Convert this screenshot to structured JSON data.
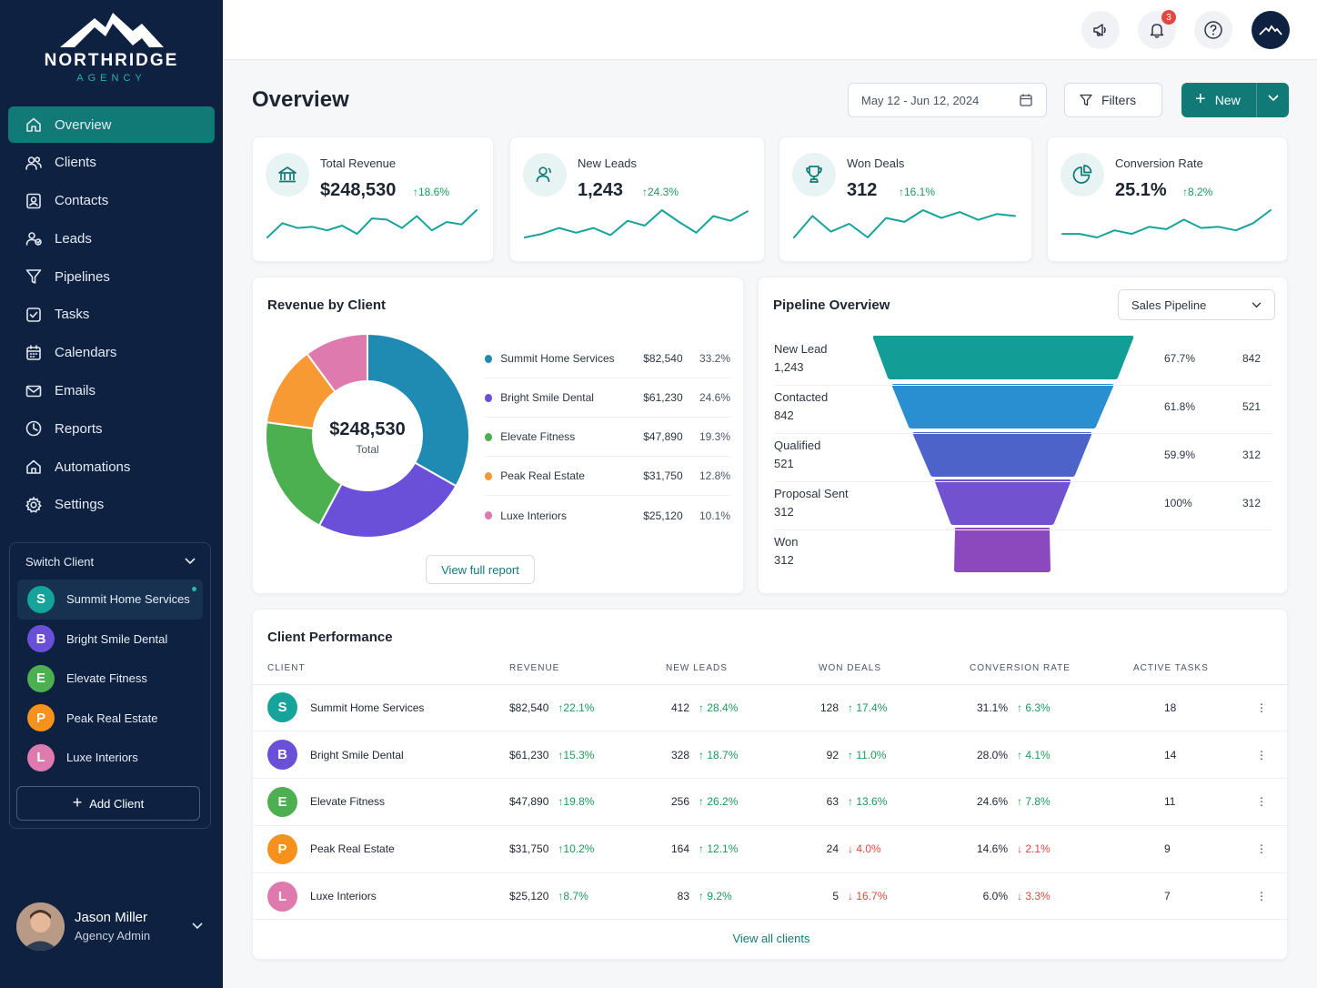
{
  "brand": {
    "name": "NORTHRIDGE",
    "sub": "AGENCY"
  },
  "nav": [
    {
      "label": "Overview",
      "icon": "home-icon"
    },
    {
      "label": "Clients",
      "icon": "users-icon"
    },
    {
      "label": "Contacts",
      "icon": "contact-card-icon"
    },
    {
      "label": "Leads",
      "icon": "leads-icon"
    },
    {
      "label": "Pipelines",
      "icon": "funnel-icon"
    },
    {
      "label": "Tasks",
      "icon": "checkbox-icon"
    },
    {
      "label": "Calendars",
      "icon": "calendar-icon"
    },
    {
      "label": "Emails",
      "icon": "mail-icon"
    },
    {
      "label": "Reports",
      "icon": "clock-pie-icon"
    },
    {
      "label": "Automations",
      "icon": "automation-icon"
    },
    {
      "label": "Settings",
      "icon": "gear-icon"
    }
  ],
  "switch_client": {
    "title": "Switch Client",
    "clients": [
      {
        "initial": "S",
        "name": "Summit Home Services",
        "color": "#15a39b"
      },
      {
        "initial": "B",
        "name": "Bright Smile Dental",
        "color": "#6a4fd8"
      },
      {
        "initial": "E",
        "name": "Elevate Fitness",
        "color": "#4caf50"
      },
      {
        "initial": "P",
        "name": "Peak Real Estate",
        "color": "#f5921e"
      },
      {
        "initial": "L",
        "name": "Luxe Interiors",
        "color": "#df7aae"
      }
    ],
    "add_label": "Add Client"
  },
  "user": {
    "name": "Jason Miller",
    "role": "Agency Admin"
  },
  "topbar": {
    "notification_count": "3"
  },
  "page": {
    "title": "Overview",
    "date_range": "May 12 - Jun 12, 2024",
    "filters_label": "Filters",
    "new_label": "New"
  },
  "kpis": [
    {
      "label": "Total Revenue",
      "value": "$248,530",
      "delta": "18.6%",
      "icon": "bank-icon",
      "spark": [
        30,
        18,
        22,
        21,
        24,
        20,
        27,
        14,
        15,
        22,
        12,
        24,
        17,
        19,
        7
      ]
    },
    {
      "label": "New Leads",
      "value": "1,243",
      "delta": "24.3%",
      "icon": "user-icon",
      "spark": [
        28,
        25,
        20,
        24,
        20,
        26,
        14,
        18,
        5,
        15,
        24,
        10,
        14,
        6
      ]
    },
    {
      "label": "Won Deals",
      "value": "312",
      "delta": "16.1%",
      "icon": "trophy-icon",
      "spark": [
        30,
        8,
        24,
        16,
        30,
        10,
        14,
        2,
        10,
        4,
        12,
        6,
        8
      ]
    },
    {
      "label": "Conversion Rate",
      "value": "25.1%",
      "delta": "8.2%",
      "icon": "pie-icon",
      "spark": [
        20,
        20,
        23,
        17,
        20,
        14,
        16,
        8,
        15,
        14,
        17,
        11,
        0
      ]
    }
  ],
  "revenue_by_client": {
    "title": "Revenue by Client",
    "total_value": "$248,530",
    "total_label": "Total",
    "view_label": "View full report"
  },
  "chart_data": {
    "type": "pie",
    "categories": [
      "Summit Home Services",
      "Bright Smile Dental",
      "Elevate Fitness",
      "Peak Real Estate",
      "Luxe Interiors"
    ],
    "values": [
      82540,
      61230,
      47890,
      31750,
      25120
    ],
    "value_labels": [
      "$82,540",
      "$61,230",
      "$47,890",
      "$31,750",
      "$25,120"
    ],
    "percent_labels": [
      "33.2%",
      "24.6%",
      "19.3%",
      "12.8%",
      "10.1%"
    ],
    "colors": [
      "#1f8bb3",
      "#6a4fd8",
      "#4caf50",
      "#f79a33",
      "#df7aae"
    ]
  },
  "pipeline": {
    "title": "Pipeline Overview",
    "select_value": "Sales Pipeline",
    "stages": [
      {
        "name": "New Lead",
        "count": "1,243",
        "pct": "67.7%",
        "next": "842",
        "color": "#129d97"
      },
      {
        "name": "Contacted",
        "count": "842",
        "pct": "61.8%",
        "next": "521",
        "color": "#2a8fd0"
      },
      {
        "name": "Qualified",
        "count": "521",
        "pct": "59.9%",
        "next": "312",
        "color": "#4d63c9"
      },
      {
        "name": "Proposal Sent",
        "count": "312",
        "pct": "100%",
        "next": "312",
        "color": "#7352d0"
      },
      {
        "name": "Won",
        "count": "312",
        "pct": "",
        "next": "",
        "color": "#8c48bd"
      }
    ]
  },
  "performance": {
    "title": "Client Performance",
    "columns": [
      "CLIENT",
      "REVENUE",
      "NEW LEADS",
      "WON DEALS",
      "CONVERSION RATE",
      "ACTIVE TASKS"
    ],
    "rows": [
      {
        "initial": "S",
        "color": "#15a39b",
        "client": "Summit Home Services",
        "revenue": "$82,540",
        "rev_d": "22.1%",
        "rev_up": true,
        "leads": "412",
        "leads_d": "28.4%",
        "leads_up": true,
        "won": "128",
        "won_d": "17.4%",
        "won_up": true,
        "conv": "31.1%",
        "conv_d": "6.3%",
        "conv_up": true,
        "tasks": "18"
      },
      {
        "initial": "B",
        "color": "#6a4fd8",
        "client": "Bright Smile Dental",
        "revenue": "$61,230",
        "rev_d": "15.3%",
        "rev_up": true,
        "leads": "328",
        "leads_d": "18.7%",
        "leads_up": true,
        "won": "92",
        "won_d": "11.0%",
        "won_up": true,
        "conv": "28.0%",
        "conv_d": "4.1%",
        "conv_up": true,
        "tasks": "14"
      },
      {
        "initial": "E",
        "color": "#4caf50",
        "client": "Elevate Fitness",
        "revenue": "$47,890",
        "rev_d": "19.8%",
        "rev_up": true,
        "leads": "256",
        "leads_d": "26.2%",
        "leads_up": true,
        "won": "63",
        "won_d": "13.6%",
        "won_up": true,
        "conv": "24.6%",
        "conv_d": "7.8%",
        "conv_up": true,
        "tasks": "11"
      },
      {
        "initial": "P",
        "color": "#f5921e",
        "client": "Peak Real Estate",
        "revenue": "$31,750",
        "rev_d": "10.2%",
        "rev_up": true,
        "leads": "164",
        "leads_d": "12.1%",
        "leads_up": true,
        "won": "24",
        "won_d": "4.0%",
        "won_up": false,
        "conv": "14.6%",
        "conv_d": "2.1%",
        "conv_up": false,
        "tasks": "9"
      },
      {
        "initial": "L",
        "color": "#df7aae",
        "client": "Luxe Interiors",
        "revenue": "$25,120",
        "rev_d": "8.7%",
        "rev_up": true,
        "leads": "83",
        "leads_d": "9.2%",
        "leads_up": true,
        "won": "5",
        "won_d": "16.7%",
        "won_up": false,
        "conv": "6.0%",
        "conv_d": "3.3%",
        "conv_up": false,
        "tasks": "7"
      }
    ],
    "view_all_label": "View all clients"
  }
}
